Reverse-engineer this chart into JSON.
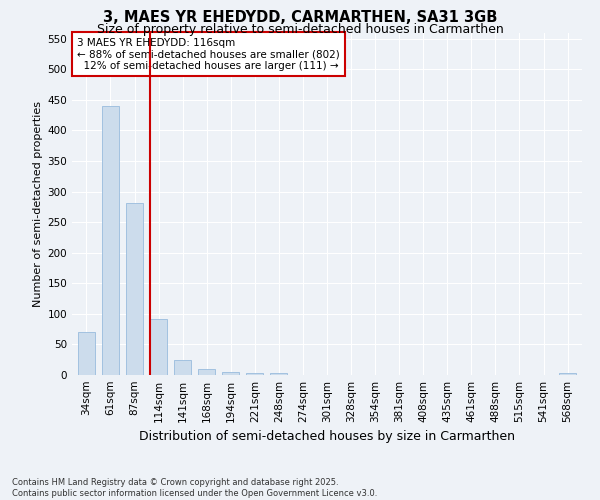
{
  "title": "3, MAES YR EHEDYDD, CARMARTHEN, SA31 3GB",
  "subtitle": "Size of property relative to semi-detached houses in Carmarthen",
  "xlabel": "Distribution of semi-detached houses by size in Carmarthen",
  "ylabel": "Number of semi-detached properties",
  "categories": [
    "34sqm",
    "61sqm",
    "87sqm",
    "114sqm",
    "141sqm",
    "168sqm",
    "194sqm",
    "221sqm",
    "248sqm",
    "274sqm",
    "301sqm",
    "328sqm",
    "354sqm",
    "381sqm",
    "408sqm",
    "435sqm",
    "461sqm",
    "488sqm",
    "515sqm",
    "541sqm",
    "568sqm"
  ],
  "values": [
    70,
    440,
    282,
    91,
    24,
    10,
    5,
    4,
    3,
    0,
    0,
    0,
    0,
    0,
    0,
    0,
    0,
    0,
    0,
    0,
    3
  ],
  "bar_color": "#ccdcec",
  "bar_edgecolor": "#99bbdd",
  "marker_label": "3 MAES YR EHEDYDD: 116sqm",
  "smaller_pct": "88%",
  "smaller_count": 802,
  "larger_pct": "12%",
  "larger_count": 111,
  "annotation_box_color": "#cc0000",
  "marker_line_index": 3,
  "ylim": [
    0,
    560
  ],
  "yticks": [
    0,
    50,
    100,
    150,
    200,
    250,
    300,
    350,
    400,
    450,
    500,
    550
  ],
  "footer": "Contains HM Land Registry data © Crown copyright and database right 2025.\nContains public sector information licensed under the Open Government Licence v3.0.",
  "bg_color": "#eef2f7",
  "grid_color": "#ffffff",
  "title_fontsize": 10.5,
  "subtitle_fontsize": 9,
  "ylabel_fontsize": 8,
  "xlabel_fontsize": 9,
  "tick_fontsize": 7.5,
  "ann_fontsize": 7.5,
  "footer_fontsize": 6
}
